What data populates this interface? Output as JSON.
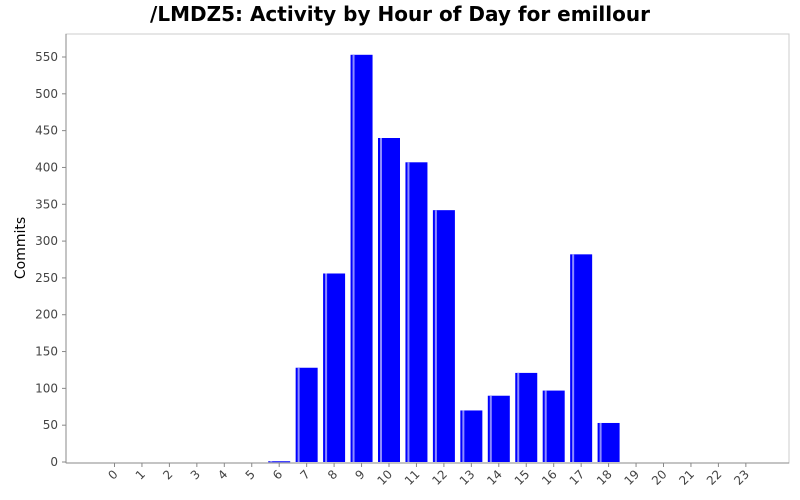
{
  "chart_data": {
    "type": "bar",
    "title": "/LMDZ5: Activity by Hour of Day for emillour",
    "xlabel": "",
    "ylabel": "Commits",
    "ylim": [
      0,
      580
    ],
    "yticks": [
      0,
      50,
      100,
      150,
      200,
      250,
      300,
      350,
      400,
      450,
      500,
      550
    ],
    "categories": [
      "0",
      "1",
      "2",
      "3",
      "4",
      "5",
      "6",
      "7",
      "8",
      "9",
      "10",
      "11",
      "12",
      "13",
      "14",
      "15",
      "16",
      "17",
      "18",
      "19",
      "20",
      "21",
      "22",
      "23"
    ],
    "values": [
      0,
      0,
      0,
      0,
      0,
      0,
      1,
      128,
      256,
      553,
      440,
      407,
      342,
      70,
      90,
      121,
      97,
      282,
      53,
      0,
      0,
      0,
      0,
      0
    ],
    "bar_color": "#0000ff",
    "grid": false,
    "legend": "none"
  }
}
